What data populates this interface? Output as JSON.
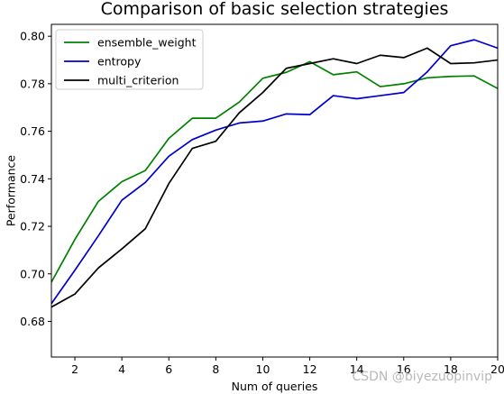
{
  "chart_data": {
    "type": "line",
    "title": "Comparison of basic selection strategies",
    "xlabel": "Num of queries",
    "ylabel": "Performance",
    "xlim": [
      1,
      20
    ],
    "ylim": [
      0.665,
      0.805
    ],
    "x_ticks": [
      2,
      4,
      6,
      8,
      10,
      12,
      14,
      16,
      18,
      20
    ],
    "y_ticks": [
      0.68,
      0.7,
      0.72,
      0.74,
      0.76,
      0.78,
      0.8
    ],
    "y_tick_labels": [
      "0.68",
      "0.70",
      "0.72",
      "0.74",
      "0.76",
      "0.78",
      "0.80"
    ],
    "x": [
      1,
      2,
      3,
      4,
      5,
      6,
      7,
      8,
      9,
      10,
      11,
      12,
      13,
      14,
      15,
      16,
      17,
      18,
      19,
      20
    ],
    "series": [
      {
        "name": "ensemble_weight",
        "color": "#008000",
        "values": [
          0.6965,
          0.7145,
          0.7305,
          0.7388,
          0.7435,
          0.757,
          0.7655,
          0.7655,
          0.7723,
          0.7823,
          0.7848,
          0.7893,
          0.7838,
          0.785,
          0.7788,
          0.78,
          0.7825,
          0.7831,
          0.7833,
          0.778
        ]
      },
      {
        "name": "entropy",
        "color": "#0000cc",
        "values": [
          0.6875,
          0.7015,
          0.716,
          0.731,
          0.7385,
          0.7495,
          0.7565,
          0.7605,
          0.7635,
          0.7643,
          0.7673,
          0.767,
          0.775,
          0.7737,
          0.775,
          0.7763,
          0.785,
          0.796,
          0.7985,
          0.795
        ]
      },
      {
        "name": "multi_criterion",
        "color": "#000000",
        "values": [
          0.686,
          0.6915,
          0.7025,
          0.7105,
          0.719,
          0.738,
          0.7528,
          0.7558,
          0.7678,
          0.7763,
          0.7865,
          0.7885,
          0.7905,
          0.7885,
          0.792,
          0.791,
          0.795,
          0.7885,
          0.7888,
          0.79
        ]
      }
    ],
    "legend_position": "top-left",
    "grid": false
  },
  "watermark": "CSDN @biyezuopinvip"
}
